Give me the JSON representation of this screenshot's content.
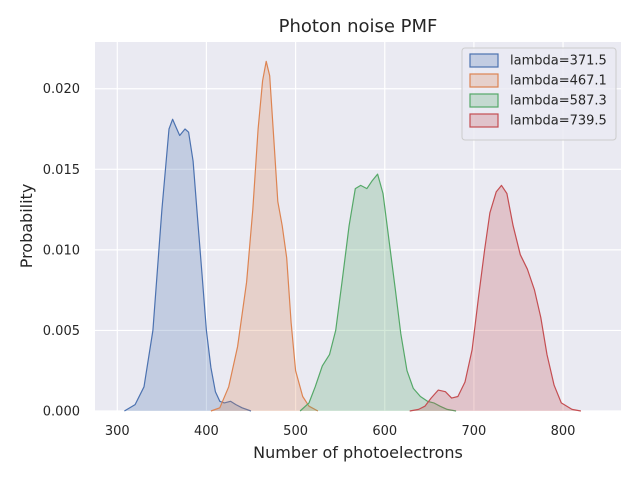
{
  "chart_data": {
    "type": "area",
    "title": "Photon noise PMF",
    "xlabel": "Number of photoelectrons",
    "ylabel": "Probability",
    "xlim": [
      275,
      865
    ],
    "ylim": [
      0,
      0.0229
    ],
    "xticks": [
      300,
      400,
      500,
      600,
      700,
      800
    ],
    "yticks": [
      0.0,
      0.005,
      0.01,
      0.015,
      0.02
    ],
    "ytick_labels": [
      "0.000",
      "0.005",
      "0.010",
      "0.015",
      "0.020"
    ],
    "grid": true,
    "legend_position": "top-right",
    "series": [
      {
        "name": "lambda=371.5",
        "color": "#4c72b0",
        "points": [
          [
            308,
            0
          ],
          [
            320,
            0.0004
          ],
          [
            330,
            0.0015
          ],
          [
            340,
            0.005
          ],
          [
            350,
            0.0125
          ],
          [
            358,
            0.0175
          ],
          [
            362,
            0.0181
          ],
          [
            366,
            0.0176
          ],
          [
            370,
            0.0171
          ],
          [
            376,
            0.0175
          ],
          [
            380,
            0.0173
          ],
          [
            385,
            0.0155
          ],
          [
            390,
            0.012
          ],
          [
            395,
            0.0085
          ],
          [
            400,
            0.005
          ],
          [
            405,
            0.0027
          ],
          [
            410,
            0.0012
          ],
          [
            415,
            0.0006
          ],
          [
            420,
            0.0005
          ],
          [
            427,
            0.0006
          ],
          [
            433,
            0.0004
          ],
          [
            440,
            0.0002
          ],
          [
            450,
            0
          ]
        ]
      },
      {
        "name": "lambda=467.1",
        "color": "#dd8452",
        "points": [
          [
            405,
            0
          ],
          [
            415,
            0.0002
          ],
          [
            425,
            0.0015
          ],
          [
            435,
            0.004
          ],
          [
            445,
            0.008
          ],
          [
            452,
            0.0125
          ],
          [
            458,
            0.0175
          ],
          [
            463,
            0.0205
          ],
          [
            467,
            0.0217
          ],
          [
            471,
            0.0208
          ],
          [
            476,
            0.0165
          ],
          [
            480,
            0.013
          ],
          [
            485,
            0.0115
          ],
          [
            490,
            0.0095
          ],
          [
            495,
            0.0055
          ],
          [
            500,
            0.0025
          ],
          [
            508,
            0.0009
          ],
          [
            515,
            0.0003
          ],
          [
            525,
            0
          ]
        ]
      },
      {
        "name": "lambda=587.3",
        "color": "#55a868",
        "points": [
          [
            505,
            0
          ],
          [
            515,
            0.0005
          ],
          [
            522,
            0.0015
          ],
          [
            530,
            0.0028
          ],
          [
            538,
            0.0035
          ],
          [
            545,
            0.005
          ],
          [
            552,
            0.008
          ],
          [
            560,
            0.0115
          ],
          [
            567,
            0.0138
          ],
          [
            573,
            0.014
          ],
          [
            580,
            0.0138
          ],
          [
            586,
            0.0143
          ],
          [
            592,
            0.0147
          ],
          [
            598,
            0.0135
          ],
          [
            605,
            0.0105
          ],
          [
            612,
            0.0075
          ],
          [
            618,
            0.0048
          ],
          [
            625,
            0.0025
          ],
          [
            632,
            0.0014
          ],
          [
            640,
            0.0009
          ],
          [
            648,
            0.0006
          ],
          [
            655,
            0.0005
          ],
          [
            662,
            0.0003
          ],
          [
            670,
            0.0001
          ],
          [
            680,
            0
          ]
        ]
      },
      {
        "name": "lambda=739.5",
        "color": "#c44e52",
        "points": [
          [
            628,
            0
          ],
          [
            638,
            0.0001
          ],
          [
            645,
            0.0003
          ],
          [
            652,
            0.0008
          ],
          [
            660,
            0.0013
          ],
          [
            668,
            0.0012
          ],
          [
            675,
            0.0008
          ],
          [
            682,
            0.0009
          ],
          [
            690,
            0.0018
          ],
          [
            698,
            0.0038
          ],
          [
            705,
            0.007
          ],
          [
            712,
            0.01
          ],
          [
            718,
            0.0123
          ],
          [
            725,
            0.0136
          ],
          [
            731,
            0.014
          ],
          [
            737,
            0.0135
          ],
          [
            744,
            0.0115
          ],
          [
            752,
            0.0097
          ],
          [
            760,
            0.0088
          ],
          [
            768,
            0.0075
          ],
          [
            775,
            0.0058
          ],
          [
            782,
            0.0035
          ],
          [
            790,
            0.0016
          ],
          [
            798,
            0.0005
          ],
          [
            810,
            0.0001
          ],
          [
            820,
            0
          ]
        ]
      }
    ]
  }
}
